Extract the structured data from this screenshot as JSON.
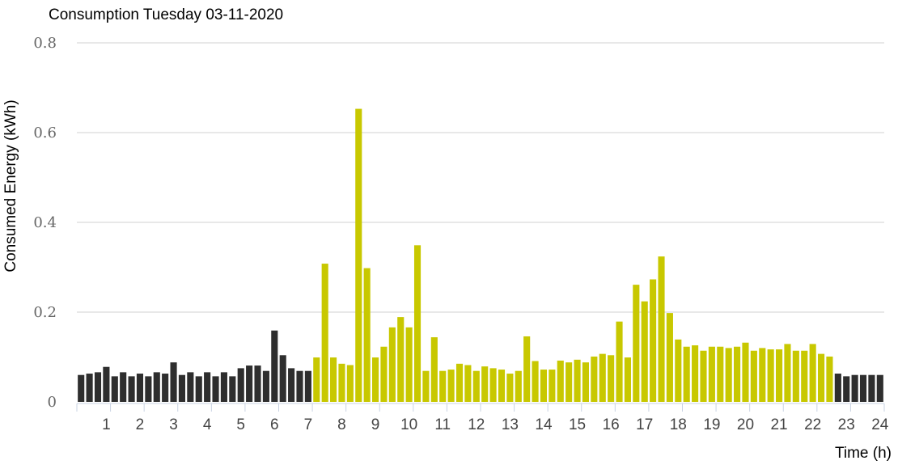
{
  "chart_data": {
    "type": "bar",
    "title": "Consumption Tuesday 03-11-2020",
    "xlabel": "Time (h)",
    "ylabel": "Consumed Energy (kWh)",
    "ylim": [
      0,
      0.8
    ],
    "yticks": [
      "0",
      "0.2",
      "0.4",
      "0.6",
      "0.8"
    ],
    "xticks": [
      "1",
      "2",
      "3",
      "4",
      "5",
      "6",
      "7",
      "8",
      "9",
      "10",
      "11",
      "12",
      "13",
      "14",
      "15",
      "16",
      "17",
      "18",
      "19",
      "20",
      "21",
      "22",
      "23",
      "24"
    ],
    "grid": "horizontal",
    "interval_minutes": 15,
    "colors": {
      "off_peak": "#2e2e2e",
      "peak": "#c8c800",
      "grid": "#d0d0d0",
      "axis": "#c9d3e3"
    },
    "series": [
      {
        "name": "",
        "values": [
          0.06,
          0.063,
          0.066,
          0.078,
          0.057,
          0.066,
          0.057,
          0.063,
          0.057,
          0.066,
          0.063,
          0.088,
          0.06,
          0.066,
          0.057,
          0.066,
          0.057,
          0.066,
          0.057,
          0.075,
          0.081,
          0.081,
          0.069,
          0.159,
          0.104,
          0.075,
          0.069,
          0.069,
          0.099,
          0.308,
          0.099,
          0.085,
          0.082,
          0.653,
          0.298,
          0.099,
          0.123,
          0.166,
          0.189,
          0.166,
          0.349,
          0.069,
          0.144,
          0.069,
          0.072,
          0.085,
          0.082,
          0.069,
          0.079,
          0.075,
          0.072,
          0.063,
          0.069,
          0.146,
          0.091,
          0.072,
          0.072,
          0.092,
          0.088,
          0.094,
          0.088,
          0.101,
          0.107,
          0.104,
          0.179,
          0.099,
          0.261,
          0.224,
          0.273,
          0.324,
          0.198,
          0.139,
          0.123,
          0.126,
          0.114,
          0.123,
          0.123,
          0.12,
          0.123,
          0.132,
          0.114,
          0.12,
          0.117,
          0.117,
          0.129,
          0.114,
          0.114,
          0.129,
          0.107,
          0.101,
          0.063,
          0.057,
          0.06,
          0.06,
          0.06,
          0.06
        ],
        "color_by_index": {
          "off_peak_ranges": [
            [
              0,
              27
            ],
            [
              90,
              95
            ]
          ],
          "peak_range": [
            28,
            89
          ]
        }
      }
    ]
  }
}
